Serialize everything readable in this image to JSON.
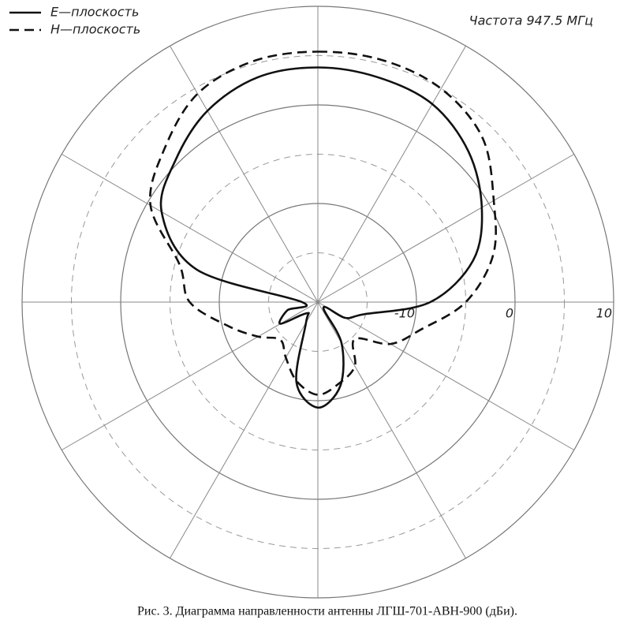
{
  "chart_data": {
    "type": "polar",
    "title": "Частота 947.5 МГц",
    "caption": "Рис. 3. Диаграмма направленности антенны ЛГШ-701-АВН-900 (дБи).",
    "rlim": [
      -20,
      10
    ],
    "rticks": [
      -10,
      0,
      10
    ],
    "rminor": [
      -15,
      -5,
      5
    ],
    "thetaticks": [
      0,
      30,
      60,
      90,
      120,
      150,
      180,
      210,
      240,
      270,
      300,
      330
    ],
    "theta": [
      0,
      15,
      30,
      45,
      60,
      75,
      90,
      105,
      120,
      135,
      150,
      165,
      180,
      195,
      210,
      225,
      240,
      255,
      270,
      285,
      300,
      315,
      330,
      345
    ],
    "series": [
      {
        "name": "E—плоскость",
        "color": "#111111",
        "dash": "solid",
        "values": [
          3.8,
          3.6,
          3.2,
          1.6,
          -0.8,
          -3.7,
          -8.6,
          -15.2,
          -16.8,
          -19.2,
          -15.2,
          -11.2,
          -9.3,
          -11.6,
          -17.6,
          -18.4,
          -15.6,
          -16.8,
          -18.4,
          -7.3,
          -1.7,
          0.4,
          2.4,
          3.6
        ]
      },
      {
        "name": "H—плоскость",
        "color": "#111111",
        "dash": "dashed",
        "values": [
          5.4,
          5.4,
          5.0,
          3.6,
          0.6,
          -1.6,
          -5.0,
          -9.2,
          -11.5,
          -14.7,
          -12.5,
          -11.5,
          -10.6,
          -11.7,
          -13.5,
          -14.6,
          -13.0,
          -10.6,
          -7.0,
          -5.5,
          -0.4,
          2.0,
          4.4,
          5.3
        ]
      }
    ],
    "legend": "top-left"
  }
}
